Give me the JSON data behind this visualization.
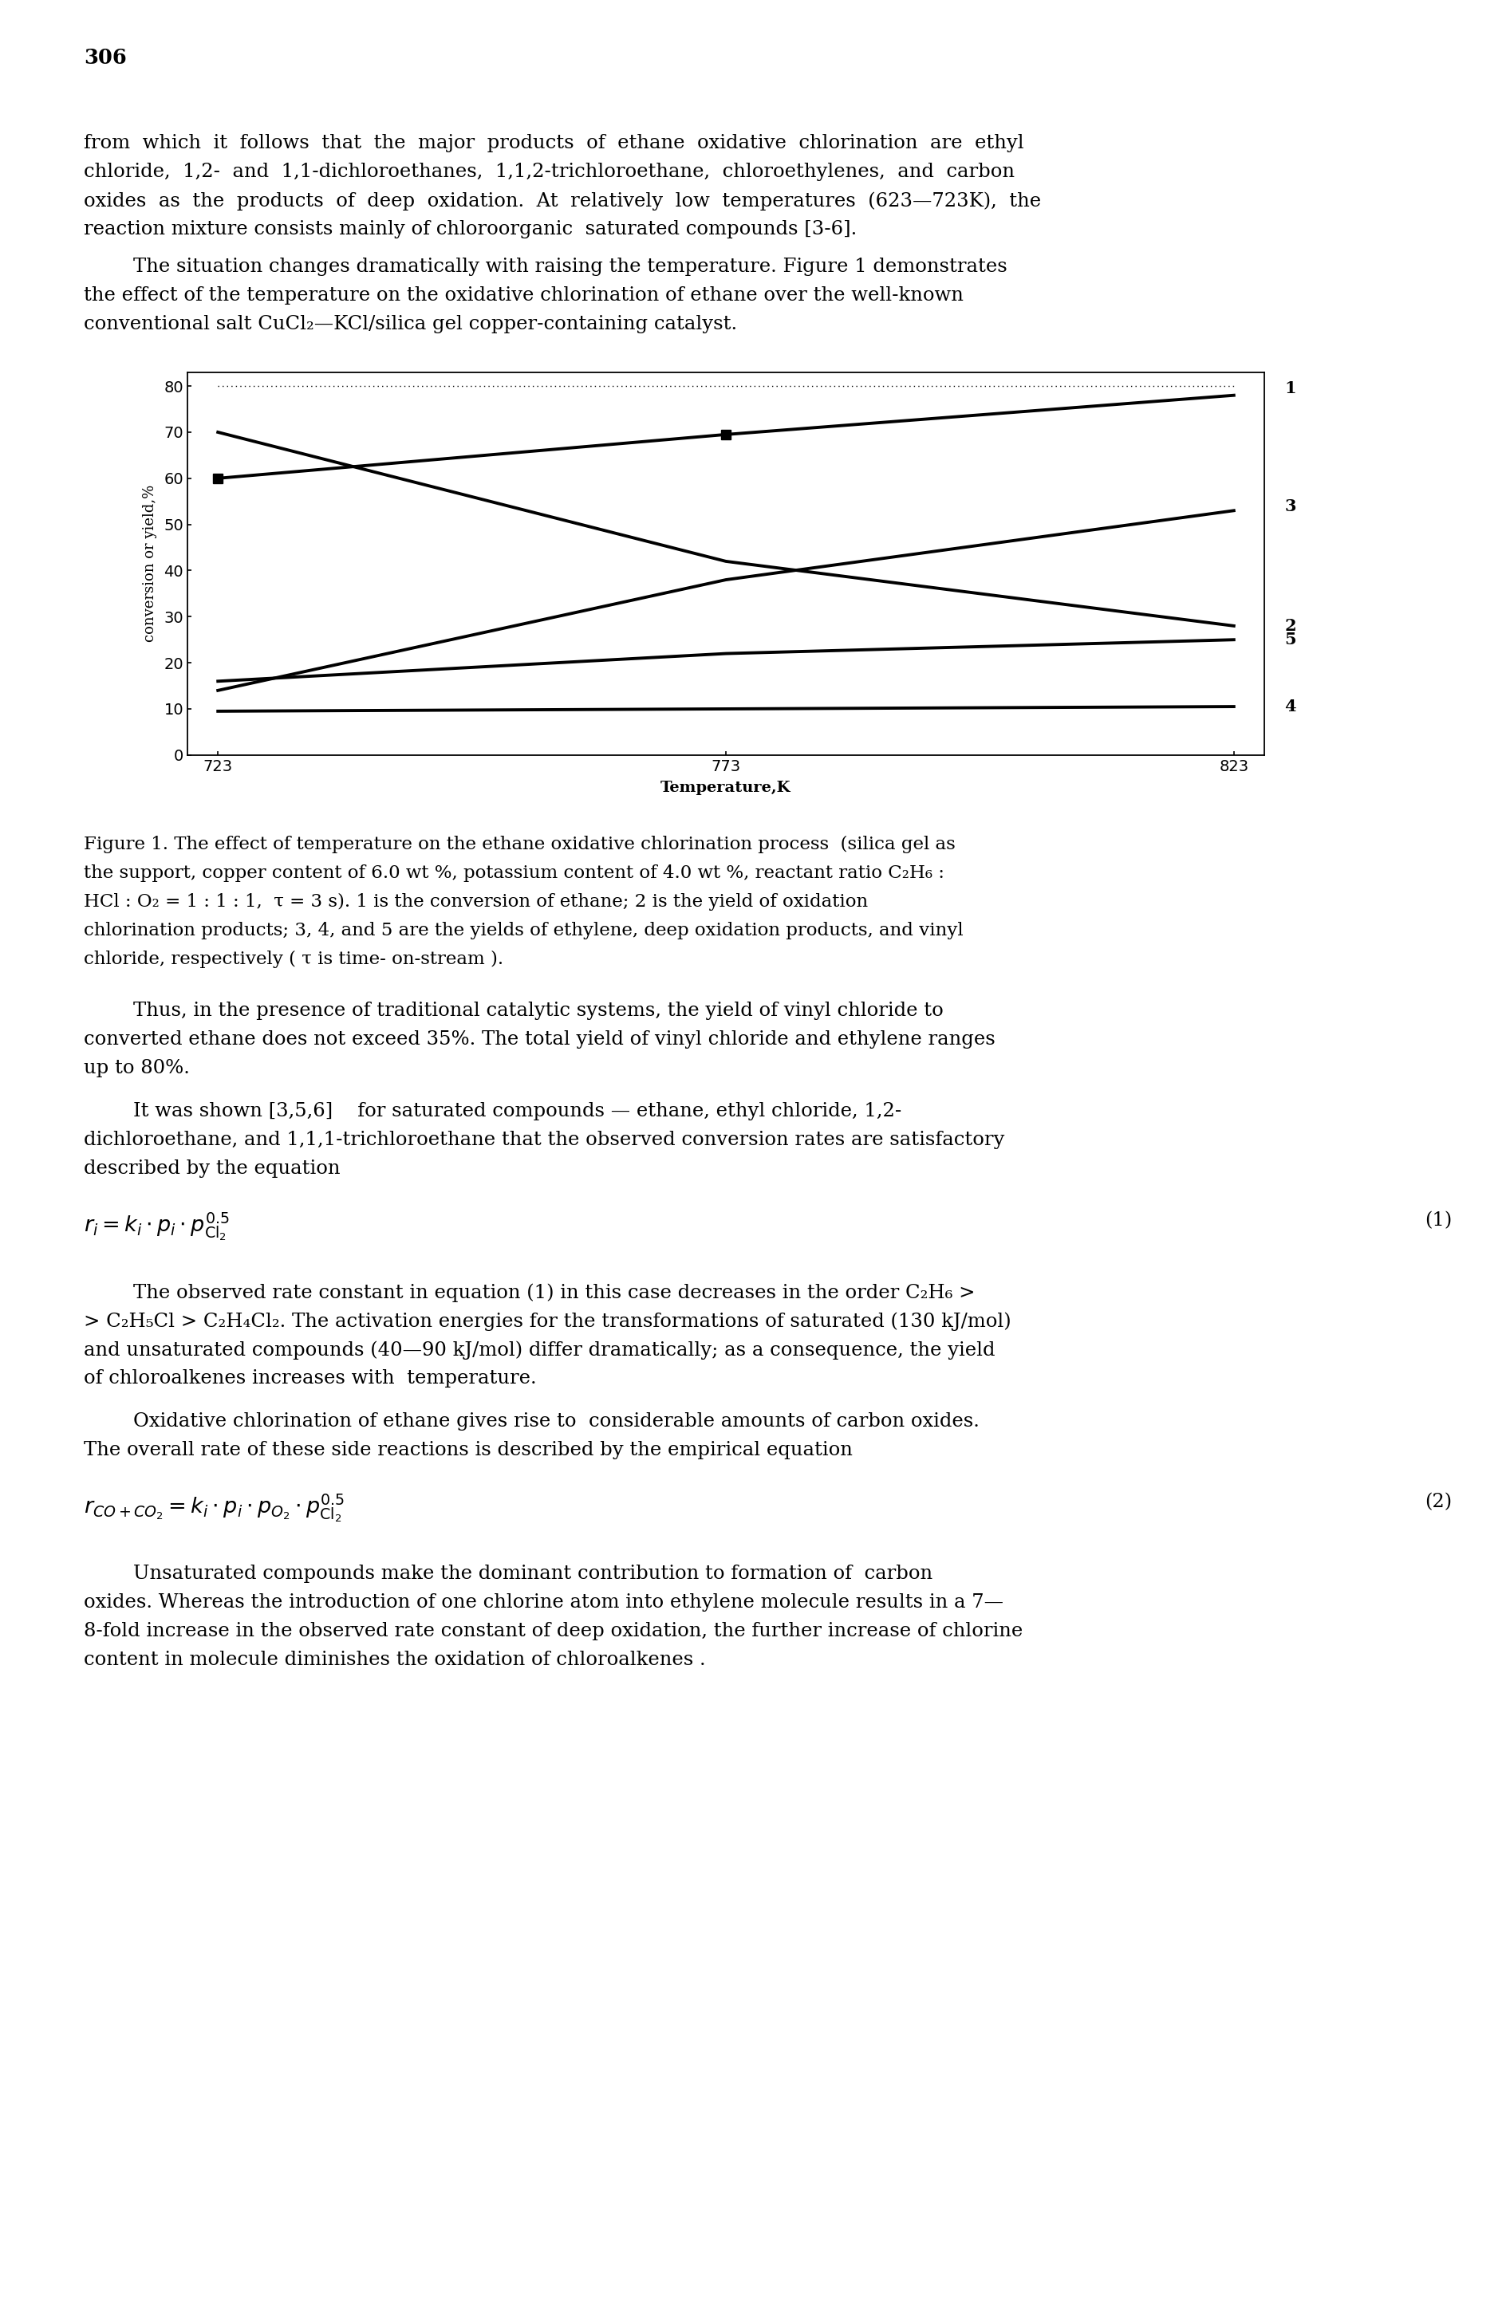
{
  "page_number": "306",
  "chart": {
    "x": [
      723,
      773,
      823
    ],
    "line1_values": [
      60.0,
      69.5,
      78.0
    ],
    "line2_values": [
      70.0,
      42.0,
      28.0
    ],
    "line3_values": [
      14.0,
      38.0,
      53.0
    ],
    "line4_values": [
      9.5,
      10.0,
      10.5
    ],
    "line5_values": [
      16.0,
      22.0,
      25.0
    ],
    "dotted_line_y": 80.0,
    "xlabel": "Temperature,K",
    "ylabel": "conversion or yield,%",
    "ylim": [
      0,
      83
    ],
    "yticks": [
      0,
      10,
      20,
      30,
      40,
      50,
      60,
      70,
      80
    ],
    "xticks": [
      723,
      773,
      823
    ]
  },
  "text_color": "#000000",
  "bg_color": "#ffffff",
  "para1_lines": [
    "from  which  it  follows  that  the  major  products  of  ethane  oxidative  chlorination  are  ethyl",
    "chloride,  1,2-  and  1,1-dichloroethanes,  1,1,2-trichloroethane,  chloroethylenes,  and  carbon",
    "oxides  as  the  products  of  deep  oxidation.  At  relatively  low  temperatures  (623—723K),  the",
    "reaction mixture consists mainly of chloroorganic  saturated compounds [3-6]."
  ],
  "para2_lines": [
    "        The situation changes dramatically with raising the temperature. Figure 1 demonstrates",
    "the effect of the temperature on the oxidative chlorination of ethane over the well-known",
    "conventional salt CuCl₂—KCl/silica gel copper-containing catalyst."
  ],
  "caption_lines": [
    "Figure 1. The effect of temperature on the ethane oxidative chlorination process  (silica gel as",
    "the support, copper content of 6.0 wt %, potassium content of 4.0 wt %, reactant ratio C₂H₆ :",
    "HCl : O₂ = 1 : 1 : 1,  τ = 3 s). 1 is the conversion of ethane; 2 is the yield of oxidation",
    "chlorination products; 3, 4, and 5 are the yields of ethylene, deep oxidation products, and vinyl",
    "chloride, respectively ( τ is time- on-stream )."
  ],
  "para3_lines": [
    "        Thus, in the presence of traditional catalytic systems, the yield of vinyl chloride to",
    "converted ethane does not exceed 35%. The total yield of vinyl chloride and ethylene ranges",
    "up to 80%."
  ],
  "para4_lines": [
    "        It was shown [3,5,6]    for saturated compounds — ethane, ethyl chloride, 1,2-",
    "dichloroethane, and 1,1,1-trichloroethane that the observed conversion rates are satisfactory",
    "described by the equation"
  ],
  "para5_lines": [
    "        The observed rate constant in equation (1) in this case decreases in the order C₂H₆ >",
    "> C₂H₅Cl > C₂H₄Cl₂. The activation energies for the transformations of saturated (130 kJ/mol)",
    "and unsaturated compounds (40—90 kJ/mol) differ dramatically; as a consequence, the yield",
    "of chloroalkenes increases with  temperature."
  ],
  "para6_lines": [
    "        Oxidative chlorination of ethane gives rise to  considerable amounts of carbon oxides.",
    "The overall rate of these side reactions is described by the empirical equation"
  ],
  "para7_lines": [
    "        Unsaturated compounds make the dominant contribution to formation of  carbon",
    "oxides. Whereas the introduction of one chlorine atom into ethylene molecule results in a 7—",
    "8-fold increase in the observed rate constant of deep oxidation, the further increase of chlorine",
    "content in molecule diminishes the oxidation of chloroalkenes ."
  ]
}
